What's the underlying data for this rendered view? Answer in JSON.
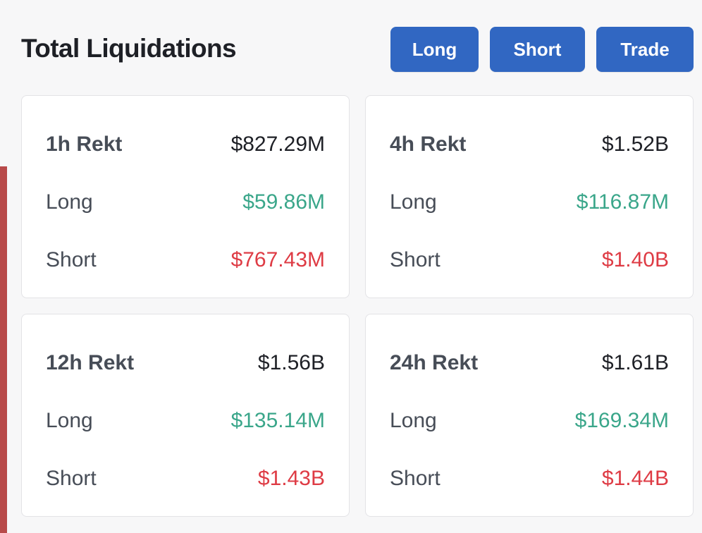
{
  "header": {
    "title": "Total Liquidations",
    "buttons": {
      "long": "Long",
      "short": "Short",
      "trade": "Trade"
    }
  },
  "colors": {
    "button_bg": "#3167c2",
    "long_value": "#3aa68a",
    "short_value": "#de3b44",
    "accent_bar": "#b84a4a"
  },
  "cards": [
    {
      "period_label": "1h Rekt",
      "total": "$827.29M",
      "long_label": "Long",
      "long_value": "$59.86M",
      "short_label": "Short",
      "short_value": "$767.43M"
    },
    {
      "period_label": "4h Rekt",
      "total": "$1.52B",
      "long_label": "Long",
      "long_value": "$116.87M",
      "short_label": "Short",
      "short_value": "$1.40B"
    },
    {
      "period_label": "12h Rekt",
      "total": "$1.56B",
      "long_label": "Long",
      "long_value": "$135.14M",
      "short_label": "Short",
      "short_value": "$1.43B"
    },
    {
      "period_label": "24h Rekt",
      "total": "$1.61B",
      "long_label": "Long",
      "long_value": "$169.34M",
      "short_label": "Short",
      "short_value": "$1.44B"
    }
  ]
}
